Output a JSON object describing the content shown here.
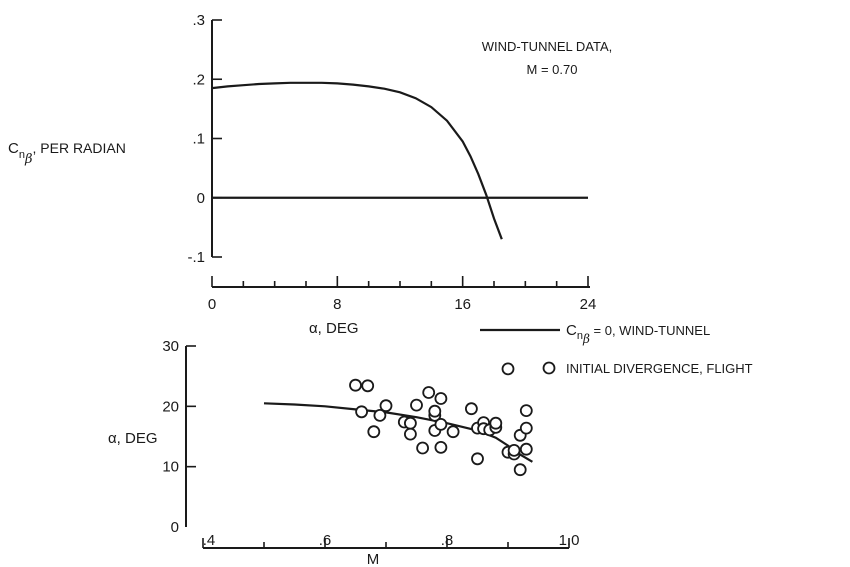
{
  "chart_data": [
    {
      "type": "line",
      "title": "",
      "annotation": [
        "WIND-TUNNEL DATA,",
        "M = 0.70"
      ],
      "xlabel": "α, DEG",
      "ylabel": {
        "symbol": "C",
        "subscript": "n",
        "subsub": "β",
        "rest": ", PER RADIAN"
      },
      "xlim": [
        0,
        24
      ],
      "ylim": [
        -0.1,
        0.3
      ],
      "xticks": [
        0,
        8,
        16,
        24
      ],
      "xtick_labels": [
        "0",
        "8",
        "16",
        "24"
      ],
      "yticks": [
        -0.1,
        0,
        0.1,
        0.2,
        0.3
      ],
      "ytick_labels": [
        "-.1",
        "0",
        ".1",
        ".2",
        ".3"
      ],
      "series": [
        {
          "x": [
            0,
            1,
            2,
            3,
            4,
            5,
            6,
            7,
            8,
            9,
            10,
            11,
            12,
            13,
            14,
            15,
            16,
            16.5,
            17,
            17.5,
            18,
            18.5
          ],
          "y": [
            0.185,
            0.188,
            0.19,
            0.192,
            0.193,
            0.194,
            0.194,
            0.194,
            0.193,
            0.191,
            0.188,
            0.184,
            0.178,
            0.168,
            0.153,
            0.13,
            0.095,
            0.07,
            0.04,
            0.005,
            -0.035,
            -0.07
          ]
        },
        {
          "x": [
            0,
            24
          ],
          "y": [
            0,
            0
          ]
        }
      ],
      "grid": false
    },
    {
      "type": "scatter",
      "title": "",
      "xlabel": "M",
      "ylabel": "α, DEG",
      "xlim": [
        0.4,
        1.0
      ],
      "ylim": [
        0,
        30
      ],
      "xticks": [
        0.4,
        0.6,
        0.8,
        1.0
      ],
      "xtick_labels": [
        ".4",
        ".6",
        ".8",
        "1.0"
      ],
      "yticks": [
        0,
        10,
        20,
        30
      ],
      "ytick_labels": [
        "0",
        "10",
        "20",
        "30"
      ],
      "legend": {
        "placement": "top-right",
        "line_label": {
          "symbol": "C",
          "subscript": "n",
          "subsub": "β",
          "rest": " = 0, WIND-TUNNEL"
        },
        "marker_label": "INITIAL DIVERGENCE, FLIGHT"
      },
      "series": [
        {
          "kind": "line",
          "x": [
            0.5,
            0.55,
            0.6,
            0.65,
            0.7,
            0.75,
            0.8,
            0.85,
            0.88,
            0.9,
            0.92,
            0.94
          ],
          "y": [
            20.5,
            20.3,
            20.0,
            19.5,
            19.0,
            18.2,
            17.2,
            16.0,
            14.8,
            13.5,
            12.0,
            10.8
          ]
        },
        {
          "kind": "scatter",
          "points": [
            [
              0.65,
              23.5
            ],
            [
              0.67,
              23.4
            ],
            [
              0.66,
              19.1
            ],
            [
              0.68,
              15.8
            ],
            [
              0.69,
              18.5
            ],
            [
              0.7,
              20.1
            ],
            [
              0.73,
              17.4
            ],
            [
              0.74,
              15.4
            ],
            [
              0.74,
              17.2
            ],
            [
              0.75,
              20.2
            ],
            [
              0.76,
              13.1
            ],
            [
              0.77,
              22.3
            ],
            [
              0.78,
              18.5
            ],
            [
              0.78,
              19.2
            ],
            [
              0.78,
              16.0
            ],
            [
              0.79,
              21.3
            ],
            [
              0.79,
              13.2
            ],
            [
              0.79,
              17.0
            ],
            [
              0.81,
              15.8
            ],
            [
              0.84,
              19.6
            ],
            [
              0.85,
              16.4
            ],
            [
              0.85,
              11.3
            ],
            [
              0.86,
              17.3
            ],
            [
              0.86,
              16.3
            ],
            [
              0.87,
              16.1
            ],
            [
              0.88,
              16.5
            ],
            [
              0.88,
              17.2
            ],
            [
              0.9,
              26.2
            ],
            [
              0.9,
              12.4
            ],
            [
              0.91,
              12.1
            ],
            [
              0.91,
              12.7
            ],
            [
              0.92,
              9.5
            ],
            [
              0.92,
              15.2
            ],
            [
              0.93,
              19.3
            ],
            [
              0.93,
              16.4
            ],
            [
              0.93,
              12.9
            ]
          ]
        }
      ],
      "grid": false
    }
  ]
}
